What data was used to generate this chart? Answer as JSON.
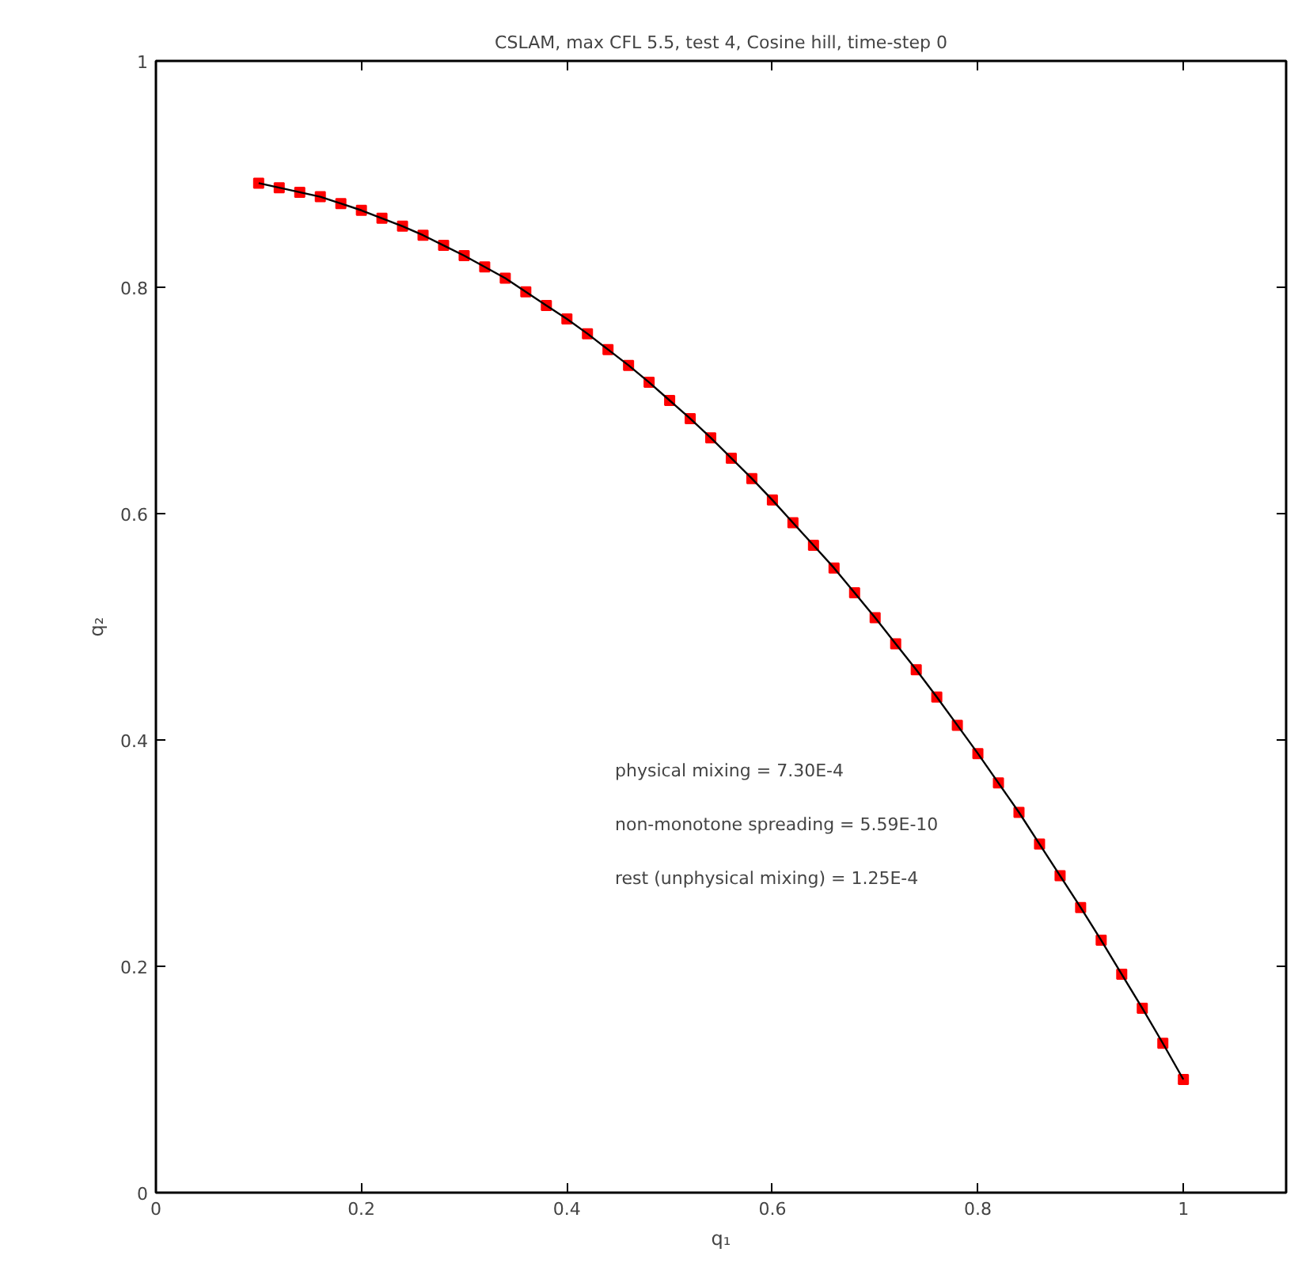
{
  "chart_data": {
    "type": "scatter",
    "title": "CSLAM, max CFL 5.5, test 4, Cosine hill, time-step 0",
    "xlabel": "q₁",
    "ylabel": "q₂",
    "x": [
      0.1,
      0.12,
      0.14,
      0.16,
      0.18,
      0.2,
      0.22,
      0.24,
      0.26,
      0.28,
      0.3,
      0.32,
      0.34,
      0.36,
      0.38,
      0.4,
      0.42,
      0.44,
      0.46,
      0.48,
      0.5,
      0.52,
      0.54,
      0.56,
      0.58,
      0.6,
      0.62,
      0.64,
      0.66,
      0.68,
      0.7,
      0.72,
      0.74,
      0.76,
      0.78,
      0.8,
      0.82,
      0.84,
      0.86,
      0.88,
      0.9,
      0.92,
      0.94,
      0.96,
      0.98,
      1.0
    ],
    "series": [
      {
        "color": "#ff0000",
        "marker": "square",
        "values": [
          0.892,
          0.888,
          0.884,
          0.88,
          0.874,
          0.868,
          0.861,
          0.854,
          0.846,
          0.837,
          0.828,
          0.818,
          0.808,
          0.796,
          0.784,
          0.772,
          0.759,
          0.745,
          0.731,
          0.716,
          0.7,
          0.684,
          0.667,
          0.649,
          0.631,
          0.612,
          0.592,
          0.572,
          0.552,
          0.53,
          0.508,
          0.485,
          0.462,
          0.438,
          0.413,
          0.388,
          0.362,
          0.336,
          0.308,
          0.28,
          0.252,
          0.223,
          0.193,
          0.163,
          0.132,
          0.1
        ]
      },
      {
        "type": "line",
        "color": "#000000",
        "values": [
          0.892,
          0.888,
          0.884,
          0.88,
          0.874,
          0.868,
          0.861,
          0.854,
          0.846,
          0.837,
          0.828,
          0.818,
          0.808,
          0.796,
          0.784,
          0.772,
          0.759,
          0.745,
          0.731,
          0.716,
          0.7,
          0.684,
          0.667,
          0.649,
          0.631,
          0.612,
          0.592,
          0.572,
          0.552,
          0.53,
          0.508,
          0.485,
          0.462,
          0.438,
          0.413,
          0.388,
          0.362,
          0.336,
          0.308,
          0.28,
          0.252,
          0.223,
          0.193,
          0.163,
          0.132,
          0.1
        ]
      }
    ],
    "xlim": [
      0,
      1.1
    ],
    "ylim": [
      0,
      1
    ],
    "xticks": [
      0,
      0.2,
      0.4,
      0.6,
      0.8,
      1
    ],
    "yticks": [
      0,
      0.2,
      0.4,
      0.6,
      0.8,
      1
    ],
    "grid": false,
    "annotations": [
      "physical mixing =          7.30E-4",
      "non-monotone spreading   = 5.59E-10",
      "rest (unphysical mixing) = 1.25E-4"
    ]
  }
}
